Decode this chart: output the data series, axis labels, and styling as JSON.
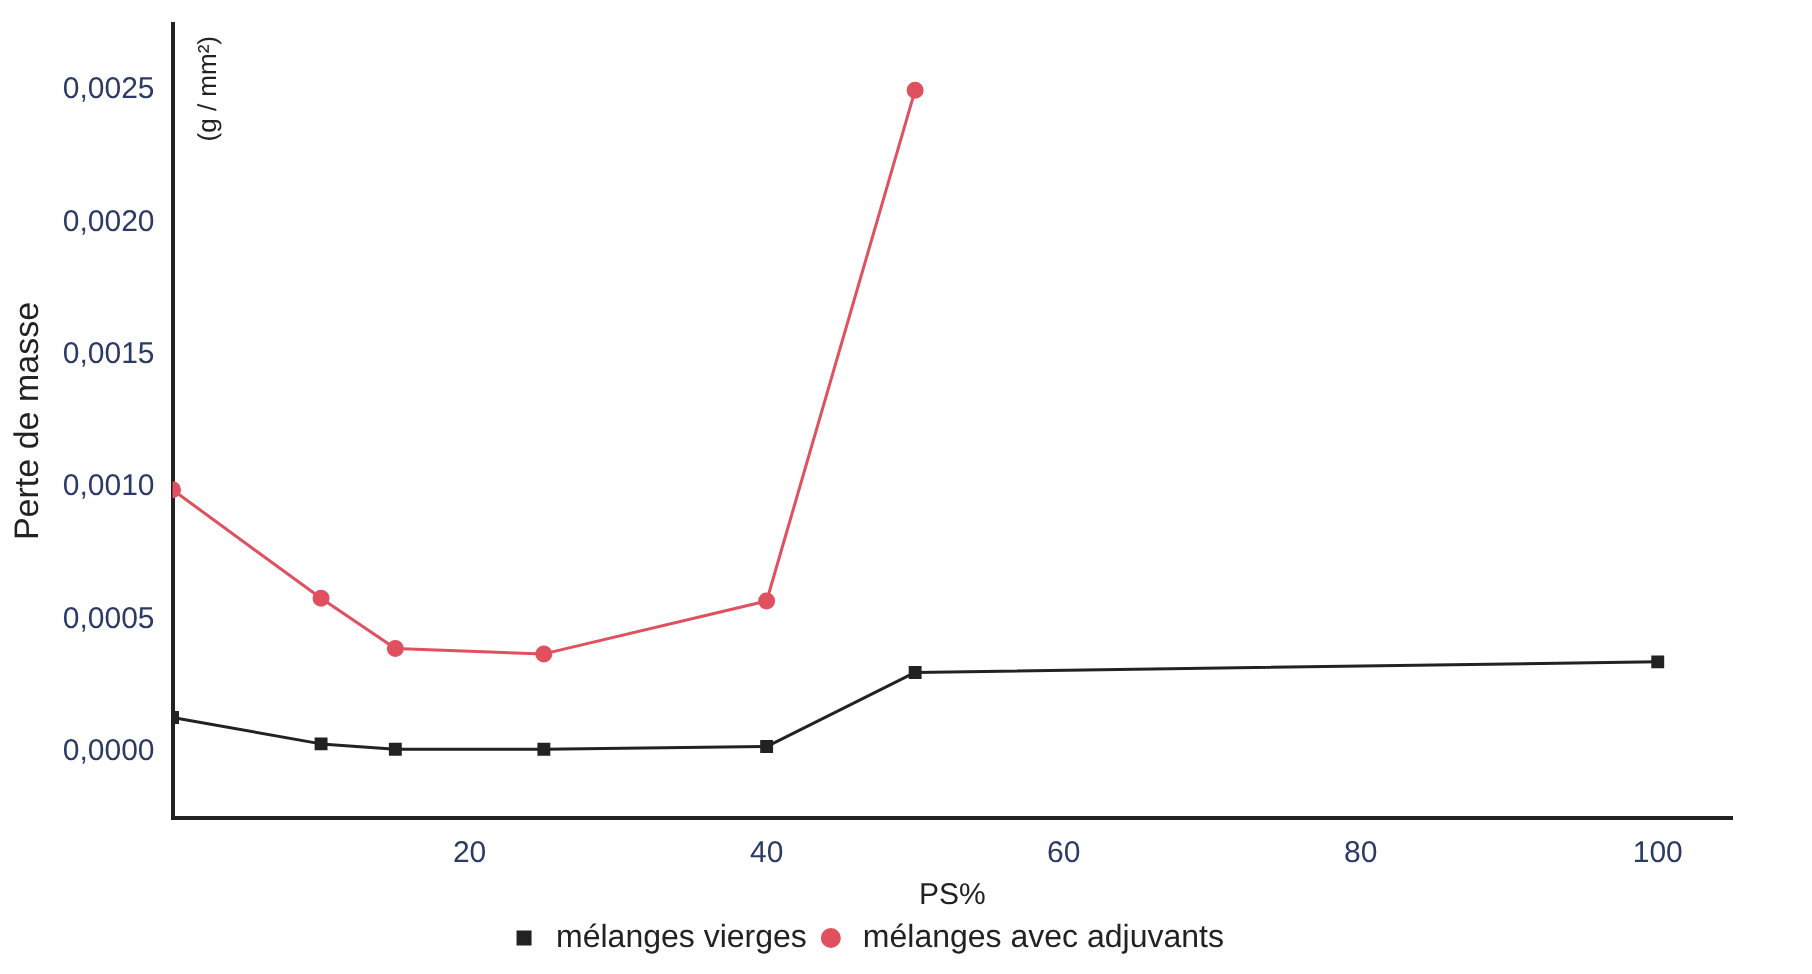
{
  "chart_data": {
    "type": "line",
    "xlabel": "PS%",
    "ylabel": "Perte de masse",
    "annotations": [
      "(g / mm²)"
    ],
    "xlim": [
      0,
      105
    ],
    "xticks": [
      20,
      40,
      60,
      80,
      100
    ],
    "ylim": [
      -0.00025,
      0.00275
    ],
    "yticks": [
      {
        "value": 0,
        "label": "0,0000"
      },
      {
        "value": 0.0005,
        "label": "0,0005"
      },
      {
        "value": 0.001,
        "label": "0,0010"
      },
      {
        "value": 0.0015,
        "label": "0,0015"
      },
      {
        "value": 0.002,
        "label": "0,0020"
      },
      {
        "value": 0.0025,
        "label": "0,0025"
      }
    ],
    "grid": false,
    "legend": "bottom",
    "line_style": "solid",
    "series": [
      {
        "name": "mélanges vierges",
        "color": "#222222",
        "marker": "square",
        "x": [
          0,
          10,
          15,
          25,
          40,
          50,
          100
        ],
        "values": [
          0.00013,
          3e-05,
          1e-05,
          1e-05,
          2e-05,
          0.0003,
          0.00034
        ]
      },
      {
        "name": "mélanges avec adjuvants",
        "color": "#e0505e",
        "marker": "circle",
        "x": [
          0,
          10,
          15,
          25,
          40,
          50
        ],
        "values": [
          0.00099,
          0.00058,
          0.00039,
          0.00037,
          0.00057,
          0.0025
        ]
      }
    ]
  }
}
